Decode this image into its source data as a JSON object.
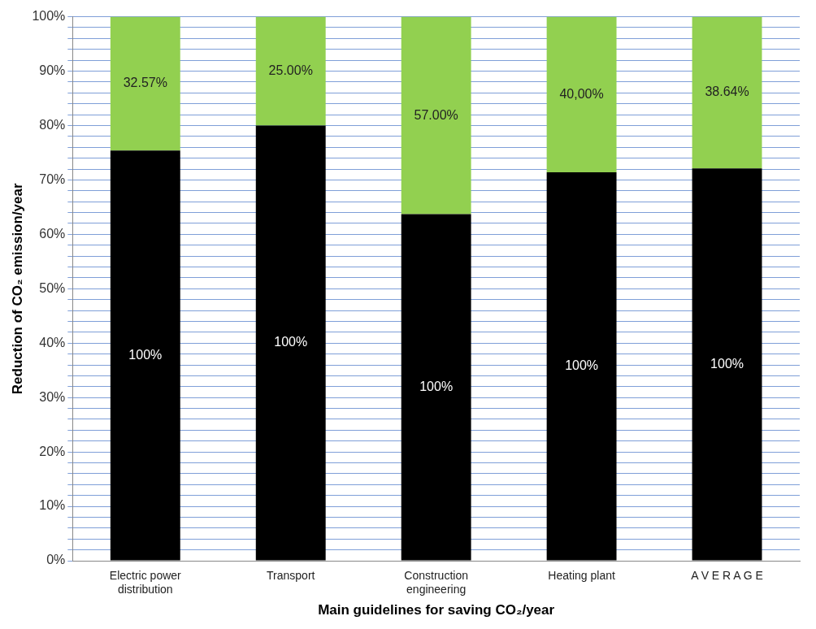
{
  "chart_data": {
    "type": "bar",
    "stacked": true,
    "xlabel": "Main guidelines for saving CO₂/year",
    "ylabel": "Reduction of CO₂ emission/year",
    "categories": [
      "Electric power distribution",
      "Transport",
      "Construction engineering",
      "Heating plant",
      "A V E R A G E"
    ],
    "series": [
      {
        "color": "#000000",
        "values": [
          75.4,
          80,
          63.7,
          71.4,
          72.1
        ]
      },
      {
        "color": "#92d050",
        "values": [
          24.6,
          20,
          36.3,
          28.6,
          27.9
        ]
      }
    ],
    "annotations": [
      "100%",
      "100%",
      "100%",
      "100%",
      "100%",
      "32.57%",
      "25.00%",
      "57.00%",
      "40,00%",
      "38.64%"
    ],
    "ylim": [
      0,
      100
    ],
    "yticks": [
      {
        "value": 0,
        "label": "0%"
      },
      {
        "value": 2,
        "label": null
      },
      {
        "value": 4,
        "label": null
      },
      {
        "value": 6,
        "label": null
      },
      {
        "value": 8,
        "label": null
      },
      {
        "value": 10,
        "label": "10%"
      },
      {
        "value": 12,
        "label": null
      },
      {
        "value": 14,
        "label": null
      },
      {
        "value": 16,
        "label": null
      },
      {
        "value": 18,
        "label": null
      },
      {
        "value": 20,
        "label": "20%"
      },
      {
        "value": 22,
        "label": null
      },
      {
        "value": 24,
        "label": null
      },
      {
        "value": 26,
        "label": null
      },
      {
        "value": 28,
        "label": null
      },
      {
        "value": 30,
        "label": "30%"
      },
      {
        "value": 32,
        "label": null
      },
      {
        "value": 34,
        "label": null
      },
      {
        "value": 36,
        "label": null
      },
      {
        "value": 38,
        "label": null
      },
      {
        "value": 40,
        "label": "40%"
      },
      {
        "value": 42,
        "label": null
      },
      {
        "value": 44,
        "label": null
      },
      {
        "value": 46,
        "label": null
      },
      {
        "value": 48,
        "label": null
      },
      {
        "value": 50,
        "label": "50%"
      },
      {
        "value": 52,
        "label": null
      },
      {
        "value": 54,
        "label": null
      },
      {
        "value": 56,
        "label": null
      },
      {
        "value": 58,
        "label": null
      },
      {
        "value": 60,
        "label": "60%"
      },
      {
        "value": 62,
        "label": null
      },
      {
        "value": 64,
        "label": null
      },
      {
        "value": 66,
        "label": null
      },
      {
        "value": 68,
        "label": null
      },
      {
        "value": 70,
        "label": "70%"
      },
      {
        "value": 72,
        "label": null
      },
      {
        "value": 74,
        "label": null
      },
      {
        "value": 76,
        "label": null
      },
      {
        "value": 78,
        "label": null
      },
      {
        "value": 80,
        "label": "80%"
      },
      {
        "value": 82,
        "label": null
      },
      {
        "value": 84,
        "label": null
      },
      {
        "value": 86,
        "label": null
      },
      {
        "value": 88,
        "label": null
      },
      {
        "value": 90,
        "label": "90%"
      },
      {
        "value": 92,
        "label": null
      },
      {
        "value": 94,
        "label": null
      },
      {
        "value": 96,
        "label": null
      },
      {
        "value": 98,
        "label": null
      },
      {
        "value": 100,
        "label": "100%"
      }
    ],
    "grid": "y"
  }
}
